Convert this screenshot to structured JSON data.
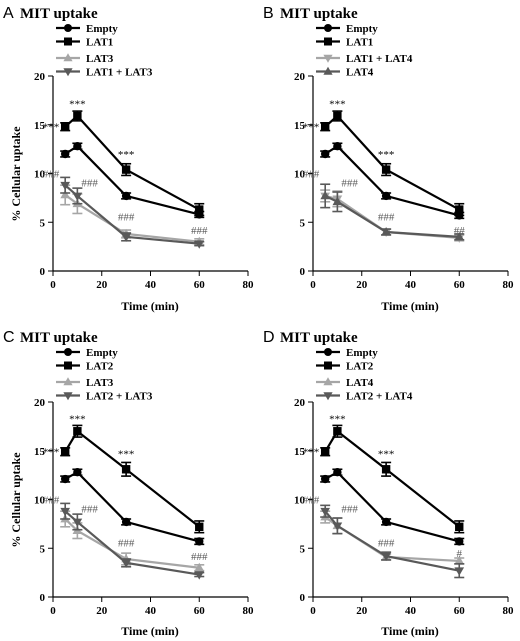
{
  "chart_data": [
    {
      "type": "line",
      "panel": "A",
      "title": "MIT uptake",
      "xlabel": "Time (min)",
      "ylabel": "% Cellular uptake",
      "xlim": [
        0,
        80
      ],
      "ylim": [
        0,
        20
      ],
      "xticks": [
        0,
        20,
        40,
        60,
        80
      ],
      "yticks": [
        0,
        5,
        10,
        15,
        20
      ],
      "grid": false,
      "legend_position": "top-left",
      "series": [
        {
          "name": "Empty",
          "marker": "circle",
          "color": "#000000",
          "x": [
            5,
            10,
            30,
            60
          ],
          "y": [
            12.0,
            12.8,
            7.7,
            5.8
          ],
          "err": [
            0.3,
            0.3,
            0.3,
            0.3
          ]
        },
        {
          "name": "LAT1",
          "marker": "square",
          "color": "#000000",
          "x": [
            5,
            10,
            30,
            60
          ],
          "y": [
            14.8,
            15.9,
            10.4,
            6.3
          ],
          "err": [
            0.4,
            0.5,
            0.6,
            0.6
          ]
        },
        {
          "name": "LAT3",
          "marker": "triangle-up",
          "color": "#a6a6a6",
          "x": [
            5,
            10,
            30,
            60
          ],
          "y": [
            7.8,
            6.9,
            3.8,
            3.0
          ],
          "err": [
            1.0,
            1.0,
            0.4,
            0.3
          ]
        },
        {
          "name": "LAT1 + LAT3",
          "marker": "triangle-down",
          "color": "#595959",
          "x": [
            5,
            10,
            30,
            60
          ],
          "y": [
            8.8,
            7.7,
            3.5,
            2.8
          ],
          "err": [
            0.8,
            0.8,
            0.4,
            0.2
          ]
        }
      ],
      "annotations": [
        {
          "text": "***",
          "x": 5,
          "y": 14.8,
          "side": "left",
          "color": "#000000"
        },
        {
          "text": "***",
          "x": 10,
          "y": 17.2,
          "side": "center",
          "color": "#000000"
        },
        {
          "text": "***",
          "x": 30,
          "y": 12.0,
          "side": "center",
          "color": "#000000"
        },
        {
          "text": "###",
          "x": 5,
          "y": 10.0,
          "side": "left",
          "color": "#595959"
        },
        {
          "text": "###",
          "x": 10,
          "y": 9.1,
          "side": "right",
          "color": "#595959"
        },
        {
          "text": "###",
          "x": 30,
          "y": 5.6,
          "side": "center",
          "color": "#595959"
        },
        {
          "text": "###",
          "x": 60,
          "y": 4.2,
          "side": "center",
          "color": "#595959"
        }
      ]
    },
    {
      "type": "line",
      "panel": "B",
      "title": "MIT uptake",
      "xlabel": "Time (min)",
      "ylabel": "",
      "xlim": [
        0,
        80
      ],
      "ylim": [
        0,
        20
      ],
      "xticks": [
        0,
        20,
        40,
        60,
        80
      ],
      "yticks": [
        0,
        5,
        10,
        15,
        20
      ],
      "grid": false,
      "legend_position": "top-left",
      "series": [
        {
          "name": "Empty",
          "marker": "circle",
          "color": "#000000",
          "x": [
            5,
            10,
            30,
            60
          ],
          "y": [
            12.0,
            12.8,
            7.7,
            5.7
          ],
          "err": [
            0.3,
            0.3,
            0.3,
            0.3
          ]
        },
        {
          "name": "LAT1",
          "marker": "square",
          "color": "#000000",
          "x": [
            5,
            10,
            30,
            60
          ],
          "y": [
            14.8,
            15.9,
            10.4,
            6.3
          ],
          "err": [
            0.4,
            0.5,
            0.6,
            0.6
          ]
        },
        {
          "name": "LAT1 + LAT4",
          "marker": "triangle-down",
          "color": "#a6a6a6",
          "x": [
            5,
            10,
            30,
            60
          ],
          "y": [
            7.7,
            7.4,
            4.0,
            3.4
          ],
          "err": [
            0.6,
            0.8,
            0.3,
            0.3
          ]
        },
        {
          "name": "LAT4",
          "marker": "triangle-up",
          "color": "#595959",
          "x": [
            5,
            10,
            30,
            60
          ],
          "y": [
            7.7,
            7.1,
            4.0,
            3.5
          ],
          "err": [
            1.2,
            1.0,
            0.3,
            0.3
          ]
        }
      ],
      "annotations": [
        {
          "text": "***",
          "x": 5,
          "y": 14.8,
          "side": "left",
          "color": "#000000"
        },
        {
          "text": "***",
          "x": 10,
          "y": 17.2,
          "side": "center",
          "color": "#000000"
        },
        {
          "text": "***",
          "x": 30,
          "y": 12.0,
          "side": "center",
          "color": "#000000"
        },
        {
          "text": "###",
          "x": 5,
          "y": 10.0,
          "side": "left",
          "color": "#595959"
        },
        {
          "text": "###",
          "x": 10,
          "y": 9.1,
          "side": "right",
          "color": "#595959"
        },
        {
          "text": "###",
          "x": 30,
          "y": 5.6,
          "side": "center",
          "color": "#595959"
        },
        {
          "text": "##",
          "x": 60,
          "y": 4.2,
          "side": "center",
          "color": "#595959"
        }
      ]
    },
    {
      "type": "line",
      "panel": "C",
      "title": "MIT uptake",
      "xlabel": "Time (min)",
      "ylabel": "% Cellular uptake",
      "xlim": [
        0,
        80
      ],
      "ylim": [
        0,
        20
      ],
      "xticks": [
        0,
        20,
        40,
        60,
        80
      ],
      "yticks": [
        0,
        5,
        10,
        15,
        20
      ],
      "grid": false,
      "legend_position": "top-left",
      "series": [
        {
          "name": "Empty",
          "marker": "circle",
          "color": "#000000",
          "x": [
            5,
            10,
            30,
            60
          ],
          "y": [
            12.1,
            12.8,
            7.7,
            5.7
          ],
          "err": [
            0.3,
            0.3,
            0.3,
            0.3
          ]
        },
        {
          "name": "LAT2",
          "marker": "square",
          "color": "#000000",
          "x": [
            5,
            10,
            30,
            60
          ],
          "y": [
            14.9,
            17.0,
            13.1,
            7.2
          ],
          "err": [
            0.4,
            0.6,
            0.7,
            0.6
          ]
        },
        {
          "name": "LAT3",
          "marker": "triangle-up",
          "color": "#a6a6a6",
          "x": [
            5,
            10,
            30,
            60
          ],
          "y": [
            8.0,
            6.8,
            3.9,
            3.0
          ],
          "err": [
            0.8,
            0.8,
            0.6,
            0.3
          ]
        },
        {
          "name": "LAT2 + LAT3",
          "marker": "triangle-down",
          "color": "#595959",
          "x": [
            5,
            10,
            30,
            60
          ],
          "y": [
            8.8,
            7.7,
            3.5,
            2.3
          ],
          "err": [
            0.8,
            0.8,
            0.4,
            0.2
          ]
        }
      ],
      "annotations": [
        {
          "text": "***",
          "x": 5,
          "y": 14.9,
          "side": "left",
          "color": "#000000"
        },
        {
          "text": "***",
          "x": 10,
          "y": 18.3,
          "side": "center",
          "color": "#000000"
        },
        {
          "text": "***",
          "x": 30,
          "y": 14.7,
          "side": "center",
          "color": "#000000"
        },
        {
          "text": "###",
          "x": 5,
          "y": 10.0,
          "side": "left",
          "color": "#595959"
        },
        {
          "text": "###",
          "x": 10,
          "y": 9.1,
          "side": "right",
          "color": "#595959"
        },
        {
          "text": "###",
          "x": 30,
          "y": 5.6,
          "side": "center",
          "color": "#595959"
        },
        {
          "text": "###",
          "x": 60,
          "y": 4.2,
          "side": "center",
          "color": "#595959"
        }
      ]
    },
    {
      "type": "line",
      "panel": "D",
      "title": "MIT uptake",
      "xlabel": "Time (min)",
      "ylabel": "",
      "xlim": [
        0,
        80
      ],
      "ylim": [
        0,
        20
      ],
      "xticks": [
        0,
        20,
        40,
        60,
        80
      ],
      "yticks": [
        0,
        5,
        10,
        15,
        20
      ],
      "grid": false,
      "legend_position": "top-left",
      "series": [
        {
          "name": "Empty",
          "marker": "circle",
          "color": "#000000",
          "x": [
            5,
            10,
            30,
            60
          ],
          "y": [
            12.1,
            12.8,
            7.7,
            5.7
          ],
          "err": [
            0.3,
            0.3,
            0.3,
            0.3
          ]
        },
        {
          "name": "LAT2",
          "marker": "square",
          "color": "#000000",
          "x": [
            5,
            10,
            30,
            60
          ],
          "y": [
            14.9,
            17.0,
            13.1,
            7.2
          ],
          "err": [
            0.4,
            0.6,
            0.7,
            0.6
          ]
        },
        {
          "name": "LAT4",
          "marker": "triangle-up",
          "color": "#a6a6a6",
          "x": [
            5,
            10,
            30,
            60
          ],
          "y": [
            8.2,
            7.3,
            4.1,
            3.7
          ],
          "err": [
            0.6,
            0.8,
            0.3,
            0.3
          ]
        },
        {
          "name": "LAT2 + LAT4",
          "marker": "triangle-down",
          "color": "#595959",
          "x": [
            5,
            10,
            30,
            60
          ],
          "y": [
            8.8,
            7.3,
            4.2,
            2.7
          ],
          "err": [
            0.6,
            0.8,
            0.4,
            0.7
          ]
        }
      ],
      "annotations": [
        {
          "text": "***",
          "x": 5,
          "y": 14.9,
          "side": "left",
          "color": "#000000"
        },
        {
          "text": "***",
          "x": 10,
          "y": 18.3,
          "side": "center",
          "color": "#000000"
        },
        {
          "text": "***",
          "x": 30,
          "y": 14.7,
          "side": "center",
          "color": "#000000"
        },
        {
          "text": "###",
          "x": 5,
          "y": 10.0,
          "side": "left",
          "color": "#595959"
        },
        {
          "text": "###",
          "x": 10,
          "y": 9.1,
          "side": "right",
          "color": "#595959"
        },
        {
          "text": "###",
          "x": 30,
          "y": 5.6,
          "side": "center",
          "color": "#595959"
        },
        {
          "text": "#",
          "x": 60,
          "y": 4.5,
          "side": "center",
          "color": "#595959"
        }
      ]
    }
  ]
}
